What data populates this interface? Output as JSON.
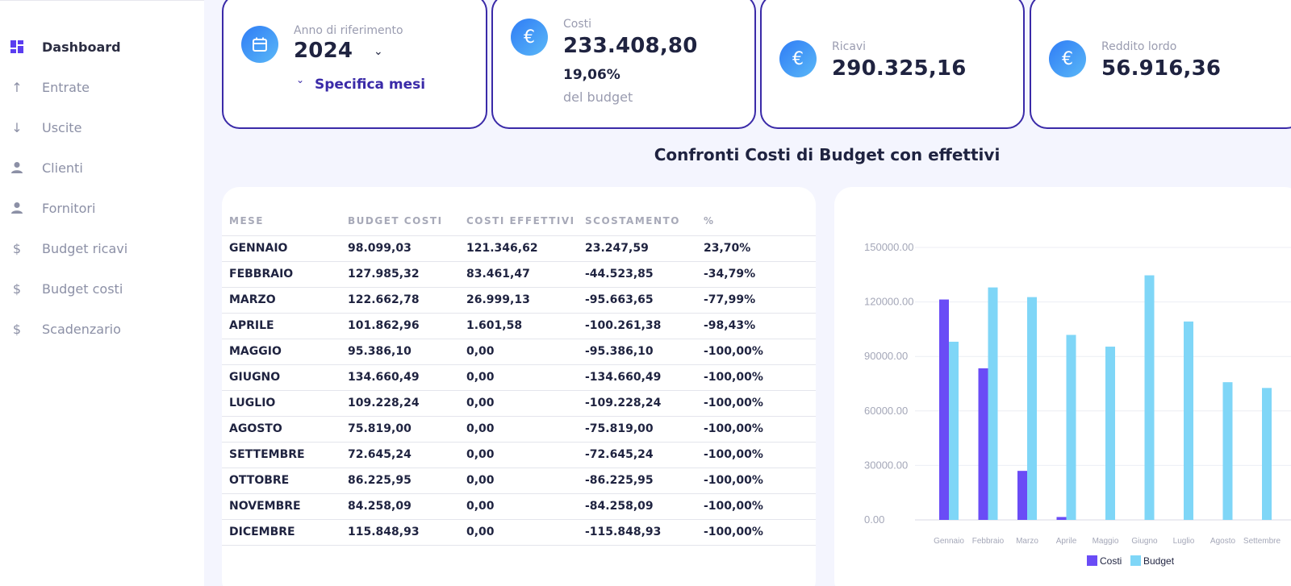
{
  "sidebar": {
    "items": [
      {
        "label": "Dashboard",
        "icon": "dashboard-icon",
        "active": true
      },
      {
        "label": "Entrate",
        "icon": "arrow-up-icon"
      },
      {
        "label": "Uscite",
        "icon": "arrow-down-icon"
      },
      {
        "label": "Clienti",
        "icon": "person-icon"
      },
      {
        "label": "Fornitori",
        "icon": "person-icon"
      },
      {
        "label": "Budget ricavi",
        "icon": "dollar-icon"
      },
      {
        "label": "Budget costi",
        "icon": "dollar-icon"
      },
      {
        "label": "Scadenzario",
        "icon": "dollar-icon"
      }
    ]
  },
  "cards": {
    "year": {
      "label": "Anno di riferimento",
      "value": "2024",
      "link": "Specifica mesi",
      "icon": "calendar-icon"
    },
    "costi": {
      "label": "Costi",
      "value": "233.408,80",
      "percent": "19,06%",
      "note": "del budget",
      "icon": "euro-icon"
    },
    "ricavi": {
      "label": "Ricavi",
      "value": "290.325,16",
      "icon": "euro-icon"
    },
    "reddito": {
      "label": "Reddito lordo",
      "value": "56.916,36",
      "icon": "euro-icon"
    }
  },
  "section_title": "Confronti Costi di Budget con effettivi",
  "table": {
    "headers": [
      "MESE",
      "BUDGET COSTI",
      "COSTI EFFETTIVI",
      "SCOSTAMENTO",
      "%"
    ],
    "rows": [
      [
        "GENNAIO",
        "98.099,03",
        "121.346,62",
        "23.247,59",
        "23,70%"
      ],
      [
        "FEBBRAIO",
        "127.985,32",
        "83.461,47",
        "-44.523,85",
        "-34,79%"
      ],
      [
        "MARZO",
        "122.662,78",
        "26.999,13",
        "-95.663,65",
        "-77,99%"
      ],
      [
        "APRILE",
        "101.862,96",
        "1.601,58",
        "-100.261,38",
        "-98,43%"
      ],
      [
        "MAGGIO",
        "95.386,10",
        "0,00",
        "-95.386,10",
        "-100,00%"
      ],
      [
        "GIUGNO",
        "134.660,49",
        "0,00",
        "-134.660,49",
        "-100,00%"
      ],
      [
        "LUGLIO",
        "109.228,24",
        "0,00",
        "-109.228,24",
        "-100,00%"
      ],
      [
        "AGOSTO",
        "75.819,00",
        "0,00",
        "-75.819,00",
        "-100,00%"
      ],
      [
        "SETTEMBRE",
        "72.645,24",
        "0,00",
        "-72.645,24",
        "-100,00%"
      ],
      [
        "OTTOBRE",
        "86.225,95",
        "0,00",
        "-86.225,95",
        "-100,00%"
      ],
      [
        "NOVEMBRE",
        "84.258,09",
        "0,00",
        "-84.258,09",
        "-100,00%"
      ],
      [
        "DICEMBRE",
        "115.848,93",
        "0,00",
        "-115.848,93",
        "-100,00%"
      ]
    ]
  },
  "chart_data": {
    "type": "bar",
    "categories": [
      "Gennaio",
      "Febbraio",
      "Marzo",
      "Aprile",
      "Maggio",
      "Giugno",
      "Luglio",
      "Agosto",
      "Settembre"
    ],
    "series": [
      {
        "name": "Costi",
        "color": "#6a4cf6",
        "values": [
          121346.62,
          83461.47,
          26999.13,
          1601.58,
          0,
          0,
          0,
          0,
          0
        ]
      },
      {
        "name": "Budget",
        "color": "#7fd6f7",
        "values": [
          98099.03,
          127985.32,
          122662.78,
          101862.96,
          95386.1,
          134660.49,
          109228.24,
          75819.0,
          72645.24
        ]
      }
    ],
    "yticks": [
      "0.00",
      "30000.00",
      "60000.00",
      "90000.00",
      "120000.00",
      "150000.00"
    ],
    "ylim": [
      0,
      150000
    ],
    "grid": true,
    "legend": "bottom"
  }
}
